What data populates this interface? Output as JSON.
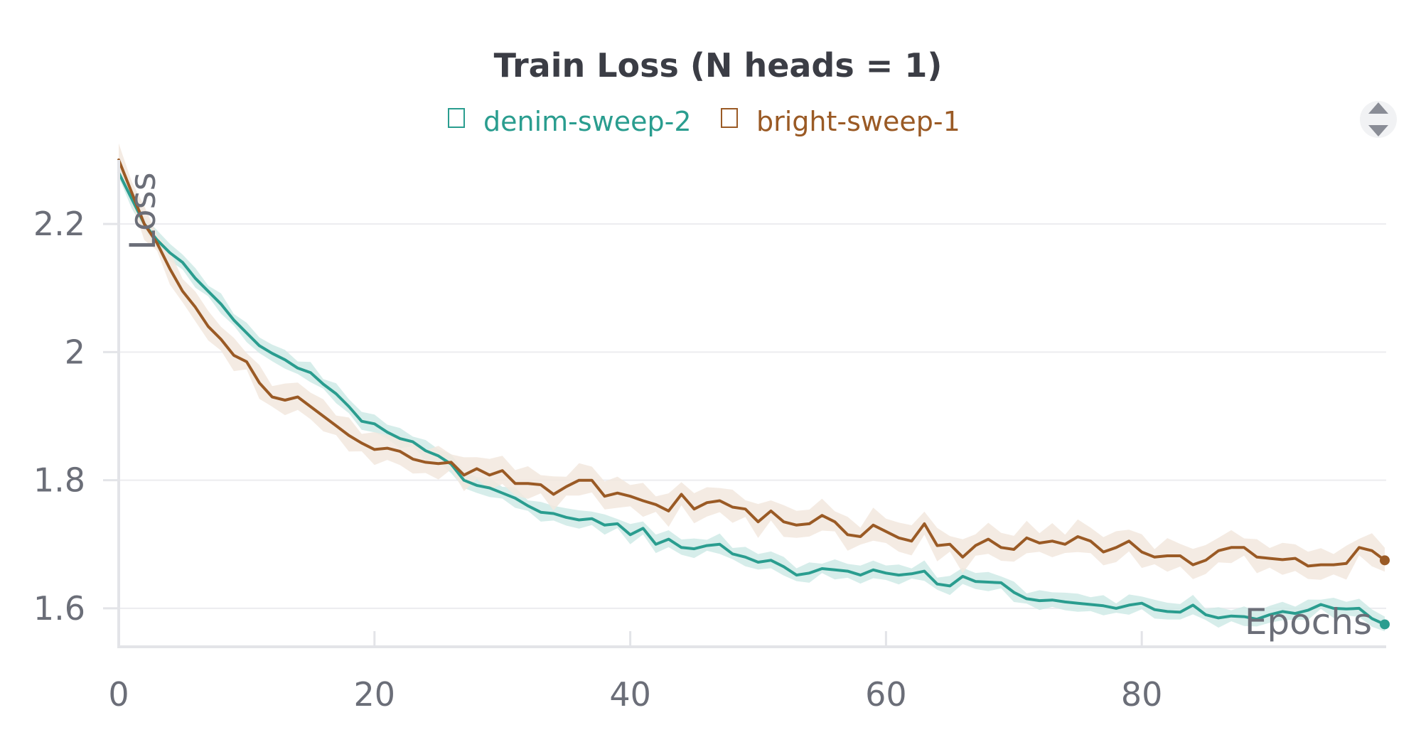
{
  "chart_data": {
    "type": "line",
    "title": "Train Loss (N heads = 1)",
    "xlabel": "Epochs",
    "ylabel": "Loss",
    "xlim": [
      0,
      99
    ],
    "ylim": [
      1.54,
      2.3
    ],
    "x_ticks": [
      0,
      20,
      40,
      60,
      80
    ],
    "x_tick_labels": [
      "0",
      "20",
      "40",
      "60",
      "80"
    ],
    "y_ticks": [
      1.6,
      1.8,
      2.0,
      2.2
    ],
    "y_tick_labels": [
      "1.6",
      "1.8",
      "2",
      "2.2"
    ],
    "grid": true,
    "legend_position": "top-center",
    "series": [
      {
        "name": "denim-sweep-2",
        "color": "#2a9d8f",
        "band_color": "#cfeae6",
        "band_width": 0.012,
        "x_start": 0,
        "x_end": 99,
        "values": [
          2.28,
          2.24,
          2.2,
          2.175,
          2.155,
          2.14,
          2.115,
          2.095,
          2.075,
          2.05,
          2.03,
          2.01,
          1.998,
          1.988,
          1.975,
          1.968,
          1.95,
          1.935,
          1.915,
          1.892,
          1.888,
          1.875,
          1.865,
          1.86,
          1.846,
          1.838,
          1.825,
          1.8,
          1.792,
          1.788,
          1.78,
          1.772,
          1.76,
          1.75,
          1.748,
          1.742,
          1.738,
          1.74,
          1.73,
          1.732,
          1.715,
          1.725,
          1.7,
          1.708,
          1.695,
          1.693,
          1.698,
          1.7,
          1.685,
          1.68,
          1.672,
          1.675,
          1.665,
          1.652,
          1.655,
          1.662,
          1.66,
          1.658,
          1.652,
          1.66,
          1.655,
          1.652,
          1.654,
          1.658,
          1.638,
          1.635,
          1.65,
          1.642,
          1.641,
          1.64,
          1.625,
          1.615,
          1.612,
          1.613,
          1.61,
          1.608,
          1.606,
          1.604,
          1.6,
          1.605,
          1.608,
          1.598,
          1.595,
          1.594,
          1.605,
          1.59,
          1.585,
          1.588,
          1.587,
          1.583,
          1.59,
          1.595,
          1.592,
          1.597,
          1.606,
          1.6,
          1.599,
          1.6,
          1.584,
          1.575
        ]
      },
      {
        "name": "bright-sweep-1",
        "color": "#9a5a25",
        "band_color": "#f2e8de",
        "band_width": 0.02,
        "x_start": 0,
        "x_end": 99,
        "values": [
          2.3,
          2.25,
          2.2,
          2.17,
          2.13,
          2.095,
          2.07,
          2.04,
          2.02,
          1.995,
          1.985,
          1.952,
          1.93,
          1.925,
          1.93,
          1.915,
          1.9,
          1.885,
          1.87,
          1.858,
          1.848,
          1.85,
          1.845,
          1.833,
          1.828,
          1.826,
          1.828,
          1.808,
          1.818,
          1.808,
          1.815,
          1.795,
          1.795,
          1.793,
          1.778,
          1.79,
          1.8,
          1.8,
          1.775,
          1.78,
          1.775,
          1.768,
          1.762,
          1.752,
          1.778,
          1.755,
          1.765,
          1.768,
          1.758,
          1.755,
          1.735,
          1.752,
          1.735,
          1.73,
          1.732,
          1.745,
          1.735,
          1.715,
          1.712,
          1.73,
          1.72,
          1.71,
          1.705,
          1.732,
          1.698,
          1.7,
          1.68,
          1.698,
          1.708,
          1.695,
          1.692,
          1.71,
          1.702,
          1.705,
          1.7,
          1.712,
          1.705,
          1.688,
          1.695,
          1.705,
          1.688,
          1.68,
          1.682,
          1.682,
          1.668,
          1.675,
          1.69,
          1.695,
          1.695,
          1.68,
          1.678,
          1.676,
          1.678,
          1.666,
          1.668,
          1.668,
          1.67,
          1.695,
          1.69,
          1.675
        ]
      }
    ]
  }
}
